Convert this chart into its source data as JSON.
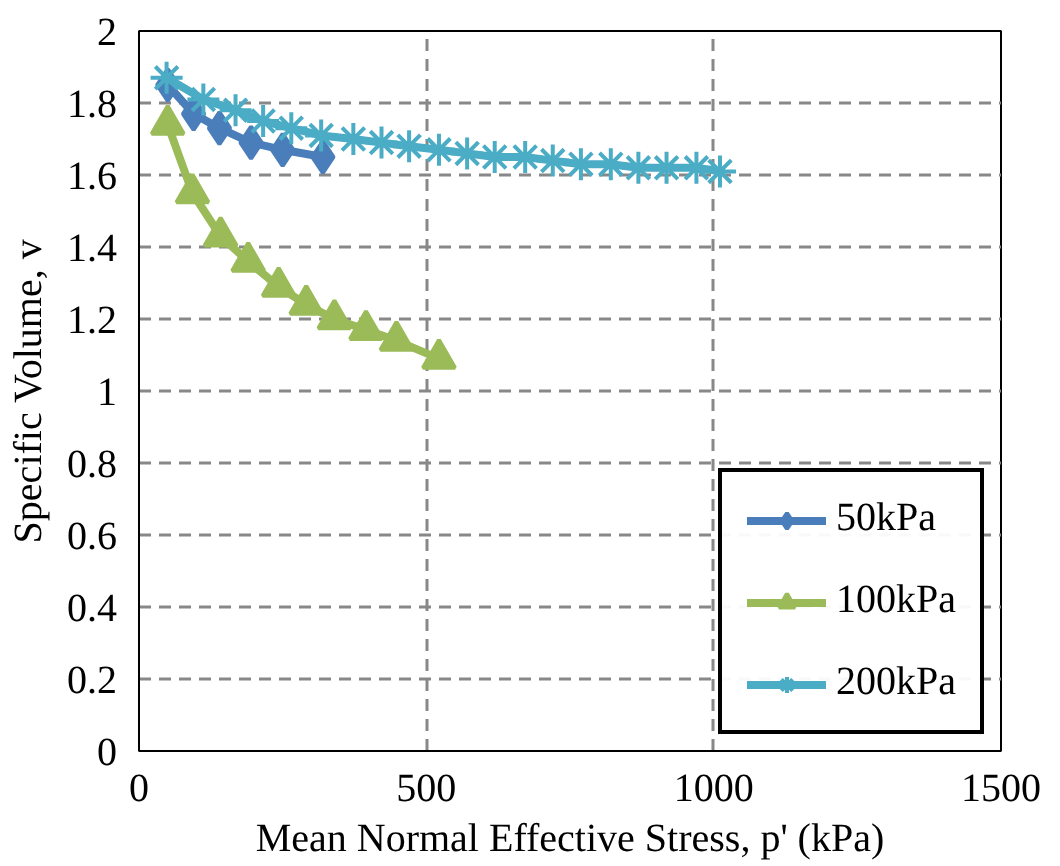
{
  "chart_data": {
    "type": "line",
    "xlabel": "Mean Normal Effective Stress, p' (kPa)",
    "ylabel": "Specific Volume, v",
    "xlim": [
      0,
      1500
    ],
    "xticks": [
      0,
      500,
      1000,
      1500
    ],
    "ylim": [
      0,
      2
    ],
    "yticks": [
      0,
      {
        "value": 0.2,
        "label": "0.2"
      },
      {
        "value": 0.4,
        "label": "0.4"
      },
      {
        "value": 0.6,
        "label": "0.6"
      },
      {
        "value": 0.8,
        "label": "0.8"
      },
      1,
      {
        "value": 1.2,
        "label": "1.2"
      },
      {
        "value": 1.4,
        "label": "1.4"
      },
      {
        "value": 1.6,
        "label": "1.6"
      },
      {
        "value": 1.8,
        "label": "1.8"
      },
      2
    ],
    "grid": true,
    "legend": "bottom right",
    "series": [
      {
        "name": "50kPa",
        "color": "#4a7ebb",
        "marker": "diamond",
        "x": [
          50,
          95,
          140,
          195,
          250,
          320
        ],
        "values": [
          1.85,
          1.77,
          1.73,
          1.69,
          1.67,
          1.65
        ]
      },
      {
        "name": "100kPa",
        "color": "#9bbb59",
        "marker": "triangle",
        "x": [
          50,
          93,
          142,
          190,
          243,
          291,
          340,
          395,
          448,
          522
        ],
        "values": [
          1.74,
          1.55,
          1.43,
          1.36,
          1.29,
          1.24,
          1.2,
          1.17,
          1.14,
          1.09
        ]
      },
      {
        "name": "200kPa",
        "color": "#4bacc6",
        "marker": "cross",
        "x": [
          48,
          112,
          168,
          216,
          265,
          317,
          373,
          422,
          470,
          522,
          571,
          619,
          672,
          720,
          769,
          821,
          869,
          918,
          970,
          1011
        ],
        "values": [
          1.87,
          1.81,
          1.78,
          1.75,
          1.73,
          1.71,
          1.7,
          1.69,
          1.68,
          1.67,
          1.66,
          1.65,
          1.65,
          1.64,
          1.63,
          1.63,
          1.62,
          1.62,
          1.62,
          1.61
        ]
      }
    ]
  }
}
